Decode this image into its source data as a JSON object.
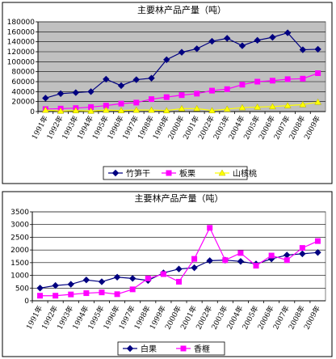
{
  "chart_data": [
    {
      "type": "line",
      "title": "主要林产品产量（吨）",
      "categories": [
        "1991年",
        "1992年",
        "1993年",
        "1994年",
        "1995年",
        "1996年",
        "1997年",
        "1998年",
        "1999年",
        "2000年",
        "2001年",
        "2002年",
        "2003年",
        "2004年",
        "2005年",
        "2006年",
        "2007年",
        "2008年",
        "2009年"
      ],
      "ylim": [
        0,
        180000
      ],
      "yticks": [
        0,
        20000,
        40000,
        60000,
        80000,
        100000,
        120000,
        140000,
        160000,
        180000
      ],
      "grid": true,
      "legend": "bottom",
      "plot_background": "#c0c0c0",
      "series": [
        {
          "name": "竹笋干",
          "color": "#000080",
          "marker": "diamond",
          "values": [
            27000,
            36000,
            38000,
            40000,
            65000,
            52000,
            64000,
            67000,
            104000,
            119000,
            126000,
            141000,
            147000,
            132000,
            143000,
            149000,
            158000,
            124000,
            125000
          ]
        },
        {
          "name": "板栗",
          "color": "#ff00ff",
          "marker": "square",
          "values": [
            5000,
            6000,
            7000,
            9000,
            12000,
            16000,
            18000,
            25000,
            29000,
            33000,
            36000,
            42000,
            45000,
            54000,
            60000,
            62000,
            65000,
            66000,
            77000
          ]
        },
        {
          "name": "山核桃",
          "color": "#ffff00",
          "marker": "triangle",
          "values": [
            3000,
            1000,
            2000,
            1000,
            3000,
            2000,
            3000,
            3000,
            2000,
            6000,
            6000,
            2000,
            5000,
            8000,
            9000,
            10000,
            12000,
            14000,
            19000
          ]
        }
      ]
    },
    {
      "type": "line",
      "title": "主要林产品产量（吨）",
      "categories": [
        "1991年",
        "1992年",
        "1993年",
        "1994年",
        "1995年",
        "1996年",
        "1997年",
        "1998年",
        "1999年",
        "2000年",
        "2001年",
        "2002年",
        "2003年",
        "2004年",
        "2005年",
        "2006年",
        "2007年",
        "2008年",
        "2009年"
      ],
      "ylim": [
        0,
        3500
      ],
      "yticks": [
        0,
        500,
        1000,
        1500,
        2000,
        2500,
        3000,
        3500
      ],
      "grid": true,
      "legend": "bottom",
      "plot_background": "#ffffff",
      "series": [
        {
          "name": "白果",
          "color": "#000080",
          "marker": "diamond",
          "values": [
            500,
            600,
            650,
            820,
            750,
            930,
            880,
            800,
            1100,
            1250,
            1300,
            1580,
            1600,
            1550,
            1450,
            1650,
            1800,
            1850,
            1900
          ]
        },
        {
          "name": "香榧",
          "color": "#ff00ff",
          "marker": "square",
          "values": [
            200,
            200,
            250,
            300,
            330,
            260,
            450,
            880,
            1050,
            750,
            1650,
            2870,
            1600,
            1880,
            1380,
            1780,
            1600,
            2080,
            2350
          ]
        }
      ]
    }
  ]
}
